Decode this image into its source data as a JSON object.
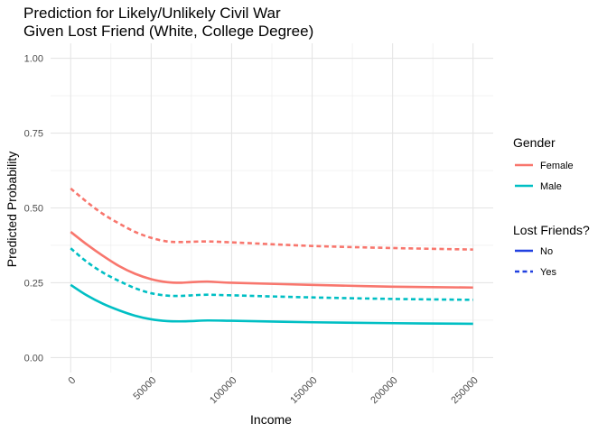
{
  "chart_data": {
    "type": "line",
    "title": [
      "Prediction for Likely/Unlikely Civil War",
      "Given Lost Friend (White, College Degree)"
    ],
    "xlabel": "Income",
    "ylabel": "Predicted Probability",
    "xlim": [
      -12500,
      262500
    ],
    "ylim": [
      -0.05,
      1.05
    ],
    "x_ticks": [
      0,
      50000,
      100000,
      150000,
      200000,
      250000
    ],
    "x_tick_labels": [
      "0",
      "50000",
      "100000",
      "150000",
      "200000",
      "250000"
    ],
    "y_ticks": [
      0,
      0.25,
      0.5,
      0.75,
      1
    ],
    "y_tick_labels": [
      "0.00",
      "0.25",
      "0.50",
      "0.75",
      "1.00"
    ],
    "x_tick_label_rotation": -45,
    "grid": true,
    "legend_position": "right",
    "legends": [
      {
        "title": "Gender",
        "entries": [
          {
            "label": "Female",
            "color": "#F8766D"
          },
          {
            "label": "Male",
            "color": "#00BFC4"
          }
        ]
      },
      {
        "title": "Lost Friends?",
        "entries": [
          {
            "label": "No",
            "style": "solid",
            "color": "#2140e0"
          },
          {
            "label": "Yes",
            "style": "dashed",
            "color": "#2140e0"
          }
        ]
      }
    ],
    "series": [
      {
        "gender": "Female",
        "lost_friends": "No",
        "color": "#F8766D",
        "style": "solid",
        "points": [
          [
            0,
            0.42
          ],
          [
            10000,
            0.378
          ],
          [
            20000,
            0.34
          ],
          [
            30000,
            0.306
          ],
          [
            40000,
            0.28
          ],
          [
            50000,
            0.262
          ],
          [
            60000,
            0.252
          ],
          [
            68000,
            0.25
          ],
          [
            75000,
            0.252
          ],
          [
            85000,
            0.254
          ],
          [
            100000,
            0.25
          ],
          [
            150000,
            0.243
          ],
          [
            200000,
            0.237
          ],
          [
            250000,
            0.234
          ]
        ]
      },
      {
        "gender": "Female",
        "lost_friends": "Yes",
        "color": "#F8766D",
        "style": "dashed",
        "points": [
          [
            0,
            0.565
          ],
          [
            10000,
            0.52
          ],
          [
            20000,
            0.48
          ],
          [
            30000,
            0.448
          ],
          [
            40000,
            0.42
          ],
          [
            50000,
            0.4
          ],
          [
            60000,
            0.388
          ],
          [
            68000,
            0.386
          ],
          [
            75000,
            0.387
          ],
          [
            85000,
            0.388
          ],
          [
            100000,
            0.385
          ],
          [
            150000,
            0.373
          ],
          [
            200000,
            0.366
          ],
          [
            250000,
            0.361
          ]
        ]
      },
      {
        "gender": "Male",
        "lost_friends": "No",
        "color": "#00BFC4",
        "style": "solid",
        "points": [
          [
            0,
            0.243
          ],
          [
            10000,
            0.208
          ],
          [
            20000,
            0.18
          ],
          [
            30000,
            0.158
          ],
          [
            40000,
            0.14
          ],
          [
            50000,
            0.128
          ],
          [
            60000,
            0.122
          ],
          [
            68000,
            0.121
          ],
          [
            75000,
            0.122
          ],
          [
            85000,
            0.124
          ],
          [
            100000,
            0.123
          ],
          [
            150000,
            0.118
          ],
          [
            200000,
            0.115
          ],
          [
            250000,
            0.113
          ]
        ]
      },
      {
        "gender": "Male",
        "lost_friends": "Yes",
        "color": "#00BFC4",
        "style": "dashed",
        "points": [
          [
            0,
            0.365
          ],
          [
            10000,
            0.32
          ],
          [
            20000,
            0.284
          ],
          [
            30000,
            0.256
          ],
          [
            40000,
            0.232
          ],
          [
            50000,
            0.215
          ],
          [
            60000,
            0.207
          ],
          [
            68000,
            0.206
          ],
          [
            75000,
            0.208
          ],
          [
            85000,
            0.21
          ],
          [
            100000,
            0.208
          ],
          [
            150000,
            0.201
          ],
          [
            200000,
            0.196
          ],
          [
            250000,
            0.193
          ]
        ]
      }
    ]
  }
}
